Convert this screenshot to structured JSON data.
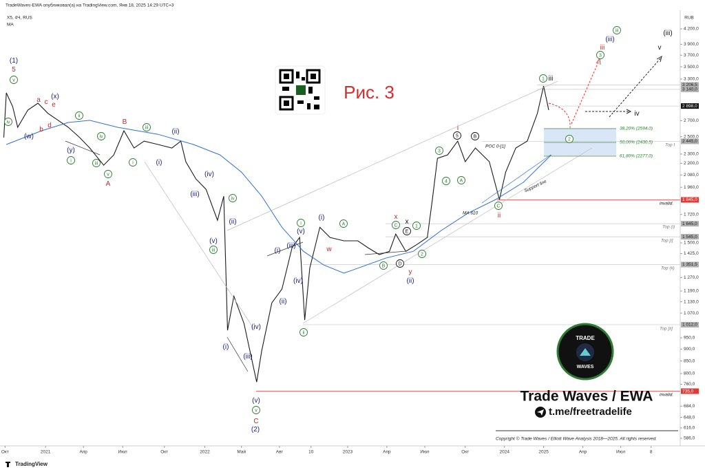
{
  "chart_data": {
    "type": "line",
    "title": "TradeWaves-EWA опубликовал(а) на TradingView.com, Янв 18, 2025 14:29 UTC+3",
    "y_axis_label": "RUB",
    "log_scale": true,
    "grid": false,
    "xlim": [
      0,
      55
    ],
    "xticks": [
      {
        "value": 0.4,
        "label": "Окт"
      },
      {
        "value": 3.6,
        "label": "2021"
      },
      {
        "value": 6.6,
        "label": "Апр"
      },
      {
        "value": 9.7,
        "label": "Июл"
      },
      {
        "value": 13.0,
        "label": "Окт"
      },
      {
        "value": 16.2,
        "label": "2022"
      },
      {
        "value": 19.1,
        "label": "Май"
      },
      {
        "value": 22.1,
        "label": "Авг"
      },
      {
        "value": 24.6,
        "label": "10"
      },
      {
        "value": 27.5,
        "label": "2023"
      },
      {
        "value": 30.6,
        "label": "Апр"
      },
      {
        "value": 33.6,
        "label": "Июл"
      },
      {
        "value": 36.8,
        "label": "Окт"
      },
      {
        "value": 39.9,
        "label": "2024"
      },
      {
        "value": 43.0,
        "label": "2025"
      },
      {
        "value": 46.1,
        "label": "Апр"
      },
      {
        "value": 49.1,
        "label": "Июл"
      },
      {
        "value": 51.5,
        "label": "8"
      }
    ],
    "ylim": [
      565,
      4517
    ],
    "yticks": [
      {
        "value": 4200,
        "label": "4 200,0"
      },
      {
        "value": 3900,
        "label": "3 900,0"
      },
      {
        "value": 3700,
        "label": "3 700,0"
      },
      {
        "value": 3500,
        "label": "3 500,0"
      },
      {
        "value": 3300,
        "label": "3 300,0"
      },
      {
        "value": 2700,
        "label": "2 700,0"
      },
      {
        "value": 2500,
        "label": "2 500,0"
      },
      {
        "value": 2300,
        "label": "2 300,0"
      },
      {
        "value": 2200,
        "label": "2 200,0"
      },
      {
        "value": 2080,
        "label": "2 080,0"
      },
      {
        "value": 1960,
        "label": "1 960,0"
      },
      {
        "value": 1720,
        "label": "1 720,0"
      },
      {
        "value": 1500,
        "label": "1 500,0"
      },
      {
        "value": 1425,
        "label": "1 425,0"
      },
      {
        "value": 1270,
        "label": "1 270,0"
      },
      {
        "value": 1190,
        "label": "1 190,0"
      },
      {
        "value": 1130,
        "label": "1 130,0"
      },
      {
        "value": 1070,
        "label": "1 070,0"
      },
      {
        "value": 950,
        "label": "950,0"
      },
      {
        "value": 900,
        "label": "900,0"
      },
      {
        "value": 850,
        "label": "850,0"
      },
      {
        "value": 800,
        "label": "800,0"
      },
      {
        "value": 760,
        "label": "760,0"
      },
      {
        "value": 684,
        "label": "684,0"
      },
      {
        "value": 648,
        "label": "648,0"
      },
      {
        "value": 616,
        "label": "616,0"
      },
      {
        "value": 586,
        "label": "586,0"
      }
    ],
    "series": [
      {
        "name": "X5, 4Ч, RUS",
        "color": "#1a1a1a",
        "x": [
          0.3,
          0.5,
          1.0,
          1.4,
          2.2,
          3.0,
          3.8,
          4.6,
          5.4,
          6.3,
          7.1,
          8.2,
          9.0,
          9.8,
          10.6,
          11.4,
          12.5,
          13.6,
          14.3,
          14.7,
          15.5,
          16.3,
          17.2,
          17.7,
          18.0,
          18.5,
          19.3,
          20.3,
          20.7,
          21.5,
          22.3,
          23.1,
          23.7,
          24.1,
          24.5,
          25.3,
          26.1,
          27.2,
          28.3,
          29.1,
          30.0,
          30.8,
          31.3,
          32.1,
          33.0,
          33.8,
          34.2,
          34.6,
          35.4,
          36.2,
          36.8,
          37.6,
          38.7,
          39.5,
          40.0,
          40.8,
          41.7,
          42.5,
          43.0,
          43.4
        ],
        "values": [
          2490,
          3087,
          2890,
          2616,
          2842,
          2937,
          2796,
          2705,
          2616,
          2490,
          2368,
          2180,
          2291,
          2573,
          2368,
          2448,
          2408,
          2368,
          2448,
          2217,
          2040,
          1941,
          1672,
          1878,
          985,
          1161,
          1018,
          768,
          892,
          1124,
          1201,
          1466,
          1540,
          1035,
          1328,
          1617,
          1540,
          1515,
          1515,
          1466,
          1418,
          1440,
          1565,
          1440,
          1490,
          1540,
          1848,
          2253,
          2291,
          2448,
          2217,
          2368,
          2217,
          1848,
          2108,
          2368,
          2448,
          2796,
          3191,
          2842
        ]
      },
      {
        "name": "MA",
        "color": "#2f6fd8",
        "x": [
          0.5,
          3.3,
          5.4,
          7.1,
          9.3,
          12.5,
          15.3,
          17.4,
          19.1,
          20.7,
          22.3,
          24.0,
          25.6,
          27.2,
          28.3,
          30.5,
          32.7,
          34.9,
          37.0,
          39.2,
          41.4,
          43.6
        ],
        "values": [
          2408,
          2573,
          2677,
          2705,
          2616,
          2529,
          2408,
          2291,
          2109,
          1878,
          1617,
          1441,
          1349,
          1297,
          1328,
          1394,
          1441,
          1592,
          1730,
          1848,
          2008,
          2291
        ]
      }
    ],
    "price_labels": [
      {
        "value": 3206.5,
        "label": "3 206,5",
        "color": "#b0b0b0"
      },
      {
        "value": 3140,
        "label": "3 140,0",
        "color": "#b0b0b0"
      },
      {
        "value": 2898,
        "label": "2 898,0",
        "color": "#111111"
      },
      {
        "value": 2445,
        "label": "2 445,0",
        "color": "#b0b0b0"
      },
      {
        "value": 1845,
        "label": "1 845,0",
        "color": "#e53935"
      },
      {
        "value": 1645,
        "label": "1 645,0",
        "color": "#b0b0b0"
      },
      {
        "value": 1545,
        "label": "1 545,0",
        "color": "#b0b0b0"
      },
      {
        "value": 1351.5,
        "label": "1 351,5",
        "color": "#b0b0b0"
      },
      {
        "value": 1012,
        "label": "1 012,0",
        "color": "#b0b0b0"
      },
      {
        "value": 735,
        "label": "735,0",
        "color": "#e53935"
      }
    ],
    "annotations": {
      "figure": "Рис. 3",
      "fib_38": "38,20% (2594,0)",
      "fib_50": "50,00% (2430,5)",
      "fib_62": "61,80% (2277,0)",
      "poc": "POC 0-[1]",
      "support": "Support line",
      "ma_label": "MA 610",
      "top_1": "Top I",
      "top_i": "Top (i)",
      "top_bi": "Top [i]",
      "top_ii": "Top (ii)",
      "top_bii": "Top [ii]",
      "invalid_1": "invalid.",
      "invalid_2": "invalid."
    },
    "wave_labels": [
      {
        "text": "(1)",
        "color": "#1a237e"
      },
      {
        "text": "5",
        "color": "#c62828"
      },
      {
        "text": "v",
        "color": "#2e7d32",
        "circled": true
      },
      {
        "text": "iv",
        "color": "#2e7d32",
        "circled": true
      },
      {
        "text": "(w)",
        "color": "#1a237e"
      },
      {
        "text": "a",
        "color": "#c62828"
      },
      {
        "text": "c",
        "color": "#c62828"
      },
      {
        "text": "e",
        "color": "#c62828"
      },
      {
        "text": "(x)",
        "color": "#1a237e"
      },
      {
        "text": "b",
        "color": "#c62828"
      },
      {
        "text": "d",
        "color": "#c62828"
      },
      {
        "text": "(y)",
        "color": "#1a237e"
      },
      {
        "text": "ii",
        "color": "#2e7d32",
        "circled": true
      },
      {
        "text": "i",
        "color": "#2e7d32",
        "circled": true
      },
      {
        "text": "iii",
        "color": "#2e7d32",
        "circled": true
      },
      {
        "text": "iv",
        "color": "#2e7d32",
        "circled": true
      },
      {
        "text": "v",
        "color": "#2e7d32",
        "circled": true
      },
      {
        "text": "A",
        "color": "#c62828"
      },
      {
        "text": "B",
        "color": "#c62828"
      },
      {
        "text": "iii",
        "color": "#2e7d32",
        "circled": true
      },
      {
        "text": "i",
        "color": "#2e7d32",
        "circled": true
      },
      {
        "text": "(ii)",
        "color": "#1a237e"
      },
      {
        "text": "(i)",
        "color": "#1a237e"
      },
      {
        "text": "(iv)",
        "color": "#1a237e"
      },
      {
        "text": "(iii)",
        "color": "#1a237e"
      },
      {
        "text": "iv",
        "color": "#2e7d32",
        "circled": true
      },
      {
        "text": "(ii)",
        "color": "#1a237e"
      },
      {
        "text": "(v)",
        "color": "#1a237e"
      },
      {
        "text": "iii",
        "color": "#2e7d32",
        "circled": true
      },
      {
        "text": "(i)",
        "color": "#1a237e"
      },
      {
        "text": "(iii)",
        "color": "#1a237e"
      },
      {
        "text": "(iv)",
        "color": "#1a237e"
      },
      {
        "text": "(v)",
        "color": "#1a237e"
      },
      {
        "text": "v",
        "color": "#2e7d32",
        "circled": true
      },
      {
        "text": "C",
        "color": "#c62828"
      },
      {
        "text": "(2)",
        "color": "#1a237e"
      },
      {
        "text": "i",
        "color": "#2e7d32",
        "circled": true
      },
      {
        "text": "(v)",
        "color": "#1a237e"
      },
      {
        "text": "(iii)",
        "color": "#1a237e"
      },
      {
        "text": "(i)",
        "color": "#1a237e"
      },
      {
        "text": "(iv)",
        "color": "#1a237e"
      },
      {
        "text": "(ii)",
        "color": "#1a237e"
      },
      {
        "text": "ii",
        "color": "#2e7d32",
        "circled": true
      },
      {
        "text": "(i)",
        "color": "#1a237e"
      },
      {
        "text": "w",
        "color": "#c62828"
      },
      {
        "text": "A",
        "color": "#2e7d32",
        "circled": true
      },
      {
        "text": "x",
        "color": "#c62828"
      },
      {
        "text": "C",
        "color": "#2e7d32",
        "circled": true
      },
      {
        "text": "B",
        "color": "#2e7d32",
        "circled": true
      },
      {
        "text": "x",
        "color": "#111111"
      },
      {
        "text": "E",
        "color": "#111111",
        "circled": true
      },
      {
        "text": "1",
        "color": "#2e7d32",
        "circled": true
      },
      {
        "text": "D",
        "color": "#111111",
        "circled": true
      },
      {
        "text": "y",
        "color": "#c62828"
      },
      {
        "text": "(ii)",
        "color": "#1a237e"
      },
      {
        "text": "2",
        "color": "#2e7d32",
        "circled": true
      },
      {
        "text": "3",
        "color": "#2e7d32",
        "circled": true
      },
      {
        "text": "4",
        "color": "#2e7d32",
        "circled": true
      },
      {
        "text": "5",
        "color": "#111111",
        "circled": true
      },
      {
        "text": "i",
        "color": "#c62828"
      },
      {
        "text": "A",
        "color": "#2e7d32",
        "circled": true
      },
      {
        "text": "B",
        "color": "#111111",
        "circled": true
      },
      {
        "text": "C",
        "color": "#2e7d32",
        "circled": true
      },
      {
        "text": "ii",
        "color": "#c62828"
      },
      {
        "text": "1",
        "color": "#2e7d32",
        "circled": true
      },
      {
        "text": "iii",
        "color": "#111111"
      },
      {
        "text": "2",
        "color": "#2e7d32",
        "circled": true
      },
      {
        "text": "3",
        "color": "#2e7d32",
        "circled": true
      },
      {
        "text": "iii",
        "color": "#c62828"
      },
      {
        "text": "(iii)",
        "color": "#1a237e"
      },
      {
        "text": "iii",
        "color": "#2e7d32",
        "circled": true
      },
      {
        "text": "(iii)",
        "color": "#111111"
      },
      {
        "text": "v",
        "color": "#111111"
      },
      {
        "text": "iv",
        "color": "#111111"
      }
    ],
    "brand": {
      "logo_top": "TRADE",
      "logo_bottom": "WAVES",
      "name": "Trade Waves / EWA",
      "telegram": "t.me/freetradelife",
      "copyright": "Copyright © Trade Waves / Elliott Wave Analysis 2018—2025. All rights reserved.",
      "footer": "TradingView"
    }
  }
}
